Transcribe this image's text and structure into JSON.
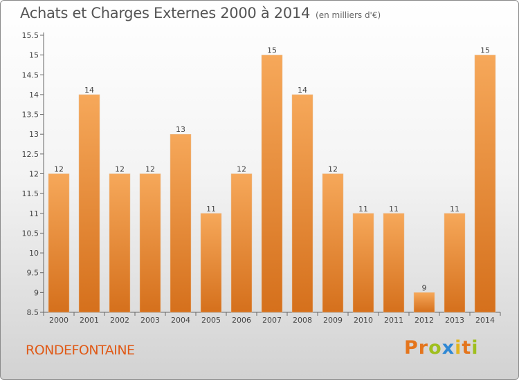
{
  "header": {
    "title": "Achats et Charges Externes 2000 à 2014",
    "subtitle": "(en milliers d'€)"
  },
  "footer": {
    "place": "RONDEFONTAINE",
    "logo": "Proxiti"
  },
  "colors": {
    "bar_light": "#f6a85a",
    "bar_dark": "#d5701c",
    "place_text": "#e05a17",
    "logo_letters": [
      "#e4751d",
      "#e4751d",
      "#9fbf1f",
      "#2f88d4",
      "#e2b51d",
      "#e4751d",
      "#9fbf1f"
    ]
  },
  "chart_data": {
    "type": "bar",
    "categories": [
      "2000",
      "2001",
      "2002",
      "2003",
      "2004",
      "2005",
      "2006",
      "2007",
      "2008",
      "2009",
      "2010",
      "2011",
      "2012",
      "2013",
      "2014"
    ],
    "values": [
      12,
      14,
      12,
      12,
      13,
      11,
      12,
      15,
      14,
      12,
      11,
      11,
      9,
      11,
      15
    ],
    "data_labels": [
      "12",
      "14",
      "12",
      "12",
      "13",
      "11",
      "12",
      "15",
      "14",
      "12",
      "11",
      "11",
      "9",
      "11",
      "15"
    ],
    "yticks": [
      8.5,
      9,
      9.5,
      10,
      10.5,
      11,
      11.5,
      12,
      12.5,
      13,
      13.5,
      14,
      14.5,
      15,
      15.5
    ],
    "ytick_labels": [
      "8.5",
      "9",
      "9.5",
      "10",
      "10.5",
      "11",
      "11.5",
      "12",
      "12.5",
      "13",
      "13.5",
      "14",
      "14.5",
      "15",
      "15.5"
    ],
    "ylim": [
      8.5,
      15.5
    ],
    "title": "Achats et Charges Externes 2000 à 2014",
    "xlabel": "",
    "ylabel": "",
    "grid": false,
    "legend": "none"
  }
}
